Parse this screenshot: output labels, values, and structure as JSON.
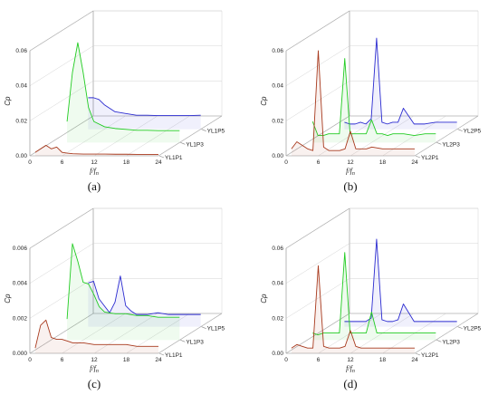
{
  "chart_data": [
    {
      "panel_label": "(a)",
      "type": "line",
      "ylabel": "Cp",
      "xlabel": "f/f_n",
      "xlim": [
        0,
        24
      ],
      "xticks": [
        "0",
        "6",
        "12",
        "18",
        "24"
      ],
      "ylim": [
        0,
        0.06
      ],
      "yticks": [
        "0.00",
        "0.02",
        "0.04",
        "0.06"
      ],
      "series": [
        {
          "name": "YL1P1",
          "color": "#a83a1e",
          "x": [
            1,
            2,
            3,
            4,
            5,
            6,
            7,
            8,
            10,
            12,
            14,
            16,
            18,
            20,
            22,
            24
          ],
          "y": [
            0.002,
            0.004,
            0.006,
            0.004,
            0.005,
            0.002,
            0.0015,
            0.0012,
            0.001,
            0.001,
            0.001,
            0.0009,
            0.0009,
            0.0008,
            0.0008,
            0.0008
          ]
        },
        {
          "name": "YL1P3",
          "color": "#22cc22",
          "x": [
            3,
            4,
            5,
            6,
            7,
            8,
            10,
            12,
            14,
            16,
            18,
            20,
            22,
            24
          ],
          "y": [
            0.012,
            0.04,
            0.057,
            0.04,
            0.02,
            0.012,
            0.009,
            0.008,
            0.0075,
            0.007,
            0.007,
            0.0068,
            0.0068,
            0.0068
          ]
        },
        {
          "name": "YL1P5",
          "color": "#2b2bd0",
          "x": [
            3,
            4,
            5,
            6,
            8,
            10,
            12,
            14,
            16,
            18,
            20,
            22,
            24
          ],
          "y": [
            0.018,
            0.018,
            0.017,
            0.014,
            0.01,
            0.009,
            0.008,
            0.008,
            0.0078,
            0.0078,
            0.0078,
            0.0078,
            0.008
          ]
        }
      ]
    },
    {
      "panel_label": "(b)",
      "type": "line",
      "ylabel": "Cp",
      "xlabel": "f/f_n",
      "xlim": [
        0,
        24
      ],
      "xticks": [
        "0",
        "6",
        "12",
        "18",
        "24"
      ],
      "ylim": [
        0,
        0.06
      ],
      "yticks": [
        "0.00",
        "0.02",
        "0.04",
        "0.06"
      ],
      "series": [
        {
          "name": "YL2P1",
          "color": "#a83a1e",
          "x": [
            1,
            2,
            3,
            4,
            5,
            6,
            7,
            8,
            9,
            10,
            11,
            12,
            13,
            14,
            15,
            16,
            18,
            20,
            22,
            24
          ],
          "y": [
            0.004,
            0.008,
            0.006,
            0.004,
            0.003,
            0.06,
            0.005,
            0.003,
            0.003,
            0.003,
            0.004,
            0.014,
            0.004,
            0.004,
            0.004,
            0.005,
            0.004,
            0.004,
            0.004,
            0.004
          ]
        },
        {
          "name": "YL2P3",
          "color": "#22cc22",
          "x": [
            1,
            2,
            3,
            4,
            5,
            6,
            7,
            8,
            9,
            10,
            11,
            12,
            13,
            14,
            15,
            16,
            18,
            20,
            22,
            24
          ],
          "y": [
            0.012,
            0.004,
            0.004,
            0.005,
            0.005,
            0.005,
            0.048,
            0.005,
            0.005,
            0.005,
            0.005,
            0.013,
            0.005,
            0.005,
            0.004,
            0.005,
            0.005,
            0.004,
            0.005,
            0.005
          ]
        },
        {
          "name": "YL2P5",
          "color": "#2b2bd0",
          "x": [
            3,
            4,
            5,
            6,
            7,
            8,
            9,
            10,
            11,
            12,
            13,
            14,
            16,
            18,
            20,
            22,
            24
          ],
          "y": [
            0.004,
            0.003,
            0.003,
            0.004,
            0.003,
            0.006,
            0.052,
            0.004,
            0.003,
            0.004,
            0.004,
            0.012,
            0.003,
            0.003,
            0.004,
            0.004,
            0.004
          ]
        }
      ]
    },
    {
      "panel_label": "(c)",
      "type": "line",
      "ylabel": "Cp",
      "xlabel": "f/f_n",
      "xlim": [
        0,
        24
      ],
      "xticks": [
        "0",
        "6",
        "12",
        "18",
        "24"
      ],
      "ylim": [
        0,
        0.006
      ],
      "yticks": [
        "0.000",
        "0.002",
        "0.004",
        "0.006"
      ],
      "series": [
        {
          "name": "YL1P1",
          "color": "#a83a1e",
          "x": [
            1,
            2,
            3,
            4,
            5,
            6,
            7,
            8,
            10,
            12,
            14,
            16,
            18,
            20,
            22,
            24
          ],
          "y": [
            0.0003,
            0.0016,
            0.0019,
            0.0009,
            0.0008,
            0.0008,
            0.0007,
            0.0006,
            0.0006,
            0.0005,
            0.0005,
            0.0005,
            0.0005,
            0.0004,
            0.0004,
            0.0004
          ]
        },
        {
          "name": "YL1P3",
          "color": "#22cc22",
          "x": [
            3,
            4,
            5,
            6,
            7,
            8,
            9,
            10,
            12,
            14,
            16,
            18,
            20,
            22,
            24
          ],
          "y": [
            0.0012,
            0.0055,
            0.0045,
            0.0033,
            0.0032,
            0.0026,
            0.0019,
            0.0016,
            0.0015,
            0.0015,
            0.0014,
            0.0014,
            0.0013,
            0.0013,
            0.0013
          ]
        },
        {
          "name": "YL1P5",
          "color": "#2b2bd0",
          "x": [
            3,
            4,
            5,
            6,
            7,
            8,
            9,
            10,
            11,
            12,
            14,
            16,
            18,
            20,
            22,
            24
          ],
          "y": [
            0.0025,
            0.0026,
            0.0016,
            0.0012,
            0.0008,
            0.0014,
            0.0029,
            0.0012,
            0.0009,
            0.0007,
            0.0007,
            0.0008,
            0.0007,
            0.0007,
            0.0007,
            0.0007
          ]
        }
      ]
    },
    {
      "panel_label": "(d)",
      "type": "line",
      "ylabel": "Cp",
      "xlabel": "f/f_n",
      "xlim": [
        0,
        24
      ],
      "xticks": [
        "0",
        "6",
        "12",
        "18",
        "24"
      ],
      "ylim": [
        0,
        0.06
      ],
      "yticks": [
        "0.00",
        "0.02",
        "0.04",
        "0.06"
      ],
      "series": [
        {
          "name": "YL2P1",
          "color": "#a83a1e",
          "x": [
            1,
            2,
            3,
            4,
            5,
            6,
            7,
            8,
            9,
            10,
            11,
            12,
            13,
            14,
            15,
            16,
            18,
            20,
            22,
            24
          ],
          "y": [
            0.003,
            0.005,
            0.004,
            0.003,
            0.003,
            0.05,
            0.004,
            0.003,
            0.003,
            0.003,
            0.004,
            0.013,
            0.004,
            0.003,
            0.003,
            0.003,
            0.003,
            0.003,
            0.003,
            0.003
          ]
        },
        {
          "name": "YL2P3",
          "color": "#22cc22",
          "x": [
            1,
            2,
            3,
            4,
            5,
            6,
            7,
            8,
            9,
            10,
            11,
            12,
            13,
            14,
            15,
            16,
            18,
            20,
            22,
            24
          ],
          "y": [
            0.004,
            0.003,
            0.004,
            0.004,
            0.004,
            0.004,
            0.05,
            0.004,
            0.004,
            0.004,
            0.004,
            0.016,
            0.004,
            0.004,
            0.004,
            0.004,
            0.004,
            0.004,
            0.004,
            0.004
          ]
        },
        {
          "name": "YL2P5",
          "color": "#2b2bd0",
          "x": [
            3,
            4,
            5,
            6,
            7,
            8,
            9,
            10,
            11,
            12,
            13,
            14,
            16,
            18,
            20,
            22,
            24
          ],
          "y": [
            0.003,
            0.003,
            0.003,
            0.003,
            0.003,
            0.005,
            0.05,
            0.004,
            0.003,
            0.003,
            0.004,
            0.013,
            0.003,
            0.003,
            0.003,
            0.003,
            0.003
          ]
        }
      ]
    }
  ]
}
